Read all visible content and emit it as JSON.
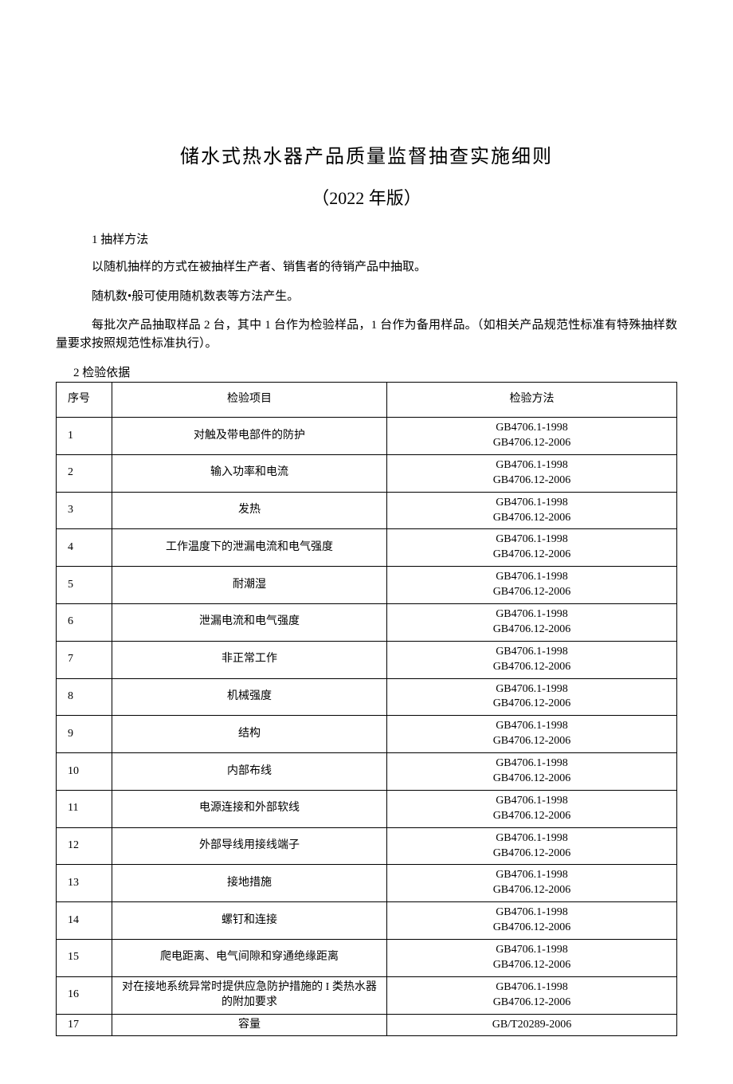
{
  "title": "储水式热水器产品质量监督抽查实施细则",
  "subtitle": "（2022 年版）",
  "section1_heading": "1 抽样方法",
  "para1": "以随机抽样的方式在被抽样生产者、销售者的待销产品中抽取。",
  "para2": "随机数•般可使用随机数表等方法产生。",
  "para3": "每批次产品抽取样品 2 台，其中 1 台作为检验样品，1 台作为备用样品。（如相关产品规范性标准有特殊抽样数量要求按照规范性标准执行）。",
  "section2_heading": "2 检验依据",
  "table": {
    "columns": [
      "序号",
      "检验项目",
      "检验方法"
    ],
    "col_widths": [
      "70px",
      "345px",
      "auto"
    ],
    "rows": [
      {
        "seq": "1",
        "item": "对触及带电部件的防护",
        "method": "GB4706.1-1998\nGB4706.12-2006"
      },
      {
        "seq": "2",
        "item": "输入功率和电流",
        "method": "GB4706.1-1998\nGB4706.12-2006"
      },
      {
        "seq": "3",
        "item": "发热",
        "method": "GB4706.1-1998\nGB4706.12-2006"
      },
      {
        "seq": "4",
        "item": "工作温度下的泄漏电流和电气强度",
        "method": "GB4706.1-1998\nGB4706.12-2006"
      },
      {
        "seq": "5",
        "item": "耐潮湿",
        "method": "GB4706.1-1998\nGB4706.12-2006"
      },
      {
        "seq": "6",
        "item": "泄漏电流和电气强度",
        "method": "GB4706.1-1998\nGB4706.12-2006"
      },
      {
        "seq": "7",
        "item": "非正常工作",
        "method": "GB4706.1-1998\nGB4706.12-2006"
      },
      {
        "seq": "8",
        "item": "机械强度",
        "method": "GB4706.1-1998\nGB4706.12-2006"
      },
      {
        "seq": "9",
        "item": "结构",
        "method": "GB4706.1-1998\nGB4706.12-2006"
      },
      {
        "seq": "10",
        "item": "内部布线",
        "method": "GB4706.1-1998\nGB4706.12-2006"
      },
      {
        "seq": "11",
        "item": "电源连接和外部软线",
        "method": "GB4706.1-1998\nGB4706.12-2006"
      },
      {
        "seq": "12",
        "item": "外部导线用接线端子",
        "method": "GB4706.1-1998\nGB4706.12-2006"
      },
      {
        "seq": "13",
        "item": "接地措施",
        "method": "GB4706.1-1998\nGB4706.12-2006"
      },
      {
        "seq": "14",
        "item": "螺钉和连接",
        "method": "GB4706.1-1998\nGB4706.12-2006"
      },
      {
        "seq": "15",
        "item": "爬电距离、电气间隙和穿通绝缘距离",
        "method": "GB4706.1-1998\nGB4706.12-2006"
      },
      {
        "seq": "16",
        "item": "对在接地系统异常时提供应急防护措施的 I 类热水器的附加要求",
        "method": "GB4706.1-1998\nGB4706.12-2006"
      },
      {
        "seq": "17",
        "item": "容量",
        "method": "GB/T20289-2006"
      }
    ]
  },
  "colors": {
    "text": "#000000",
    "background": "#ffffff",
    "border": "#000000"
  }
}
